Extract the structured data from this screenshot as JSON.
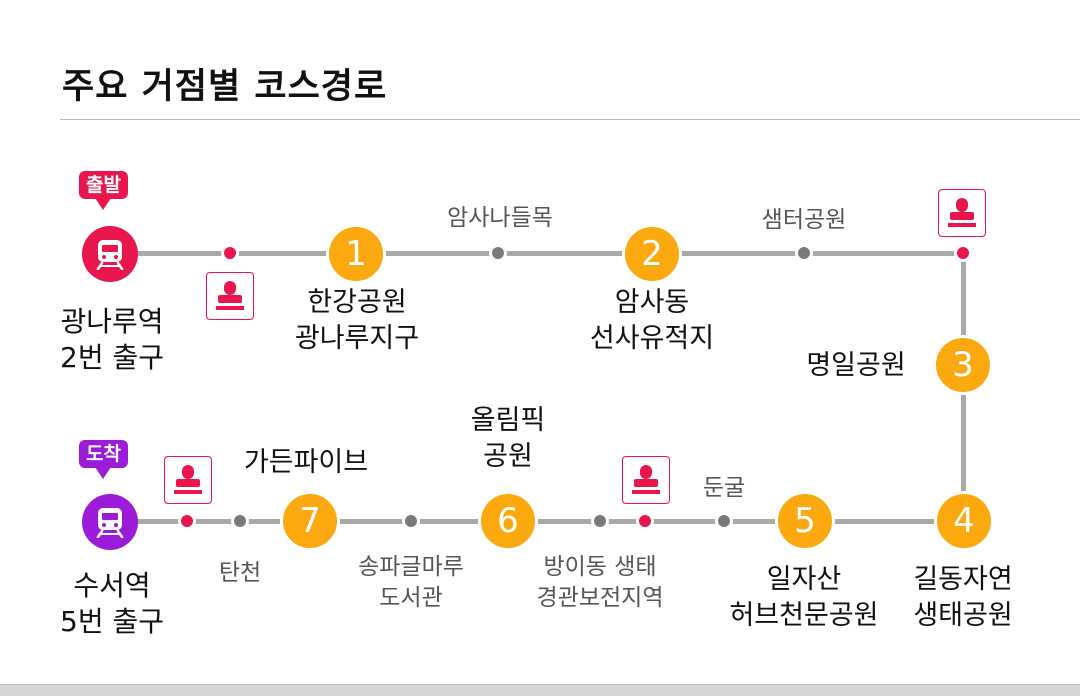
{
  "title": "주요 거점별 코스경로",
  "start": {
    "badge": "출발",
    "name_line1": "광나루역",
    "name_line2": "2번 출구"
  },
  "end": {
    "badge": "도착",
    "name_line1": "수서역",
    "name_line2": "5번 출구"
  },
  "nodes": [
    {
      "number": "1",
      "line1": "한강공원",
      "line2": "광나루지구"
    },
    {
      "number": "2",
      "line1": "암사동",
      "line2": "선사유적지"
    },
    {
      "number": "3",
      "line1": "명일공원",
      "line2": ""
    },
    {
      "number": "4",
      "line1": "길동자연",
      "line2": "생태공원"
    },
    {
      "number": "5",
      "line1": "일자산",
      "line2": "허브천문공원"
    },
    {
      "number": "6",
      "line1": "올림픽",
      "line2": "공원"
    },
    {
      "number": "7",
      "line1": "가든파이브",
      "line2": ""
    }
  ],
  "waypoints": {
    "amsa_naru": "암사나들목",
    "saemter": "샘터공원",
    "dungul": "둔굴",
    "bangi_line1": "방이동 생태",
    "bangi_line2": "경관보전지역",
    "songpa_line1": "송파글마루",
    "songpa_line2": "도서관",
    "tancheon": "탄천"
  },
  "colors": {
    "route_line": "#a9a9a9",
    "node": "#fba90f",
    "stamp_red": "#e8164d",
    "end_purple": "#9b1bd8",
    "waypoint": "#7a7a7a"
  },
  "icons": {
    "station": "subway-train-icon",
    "stamp": "stamp-icon"
  }
}
